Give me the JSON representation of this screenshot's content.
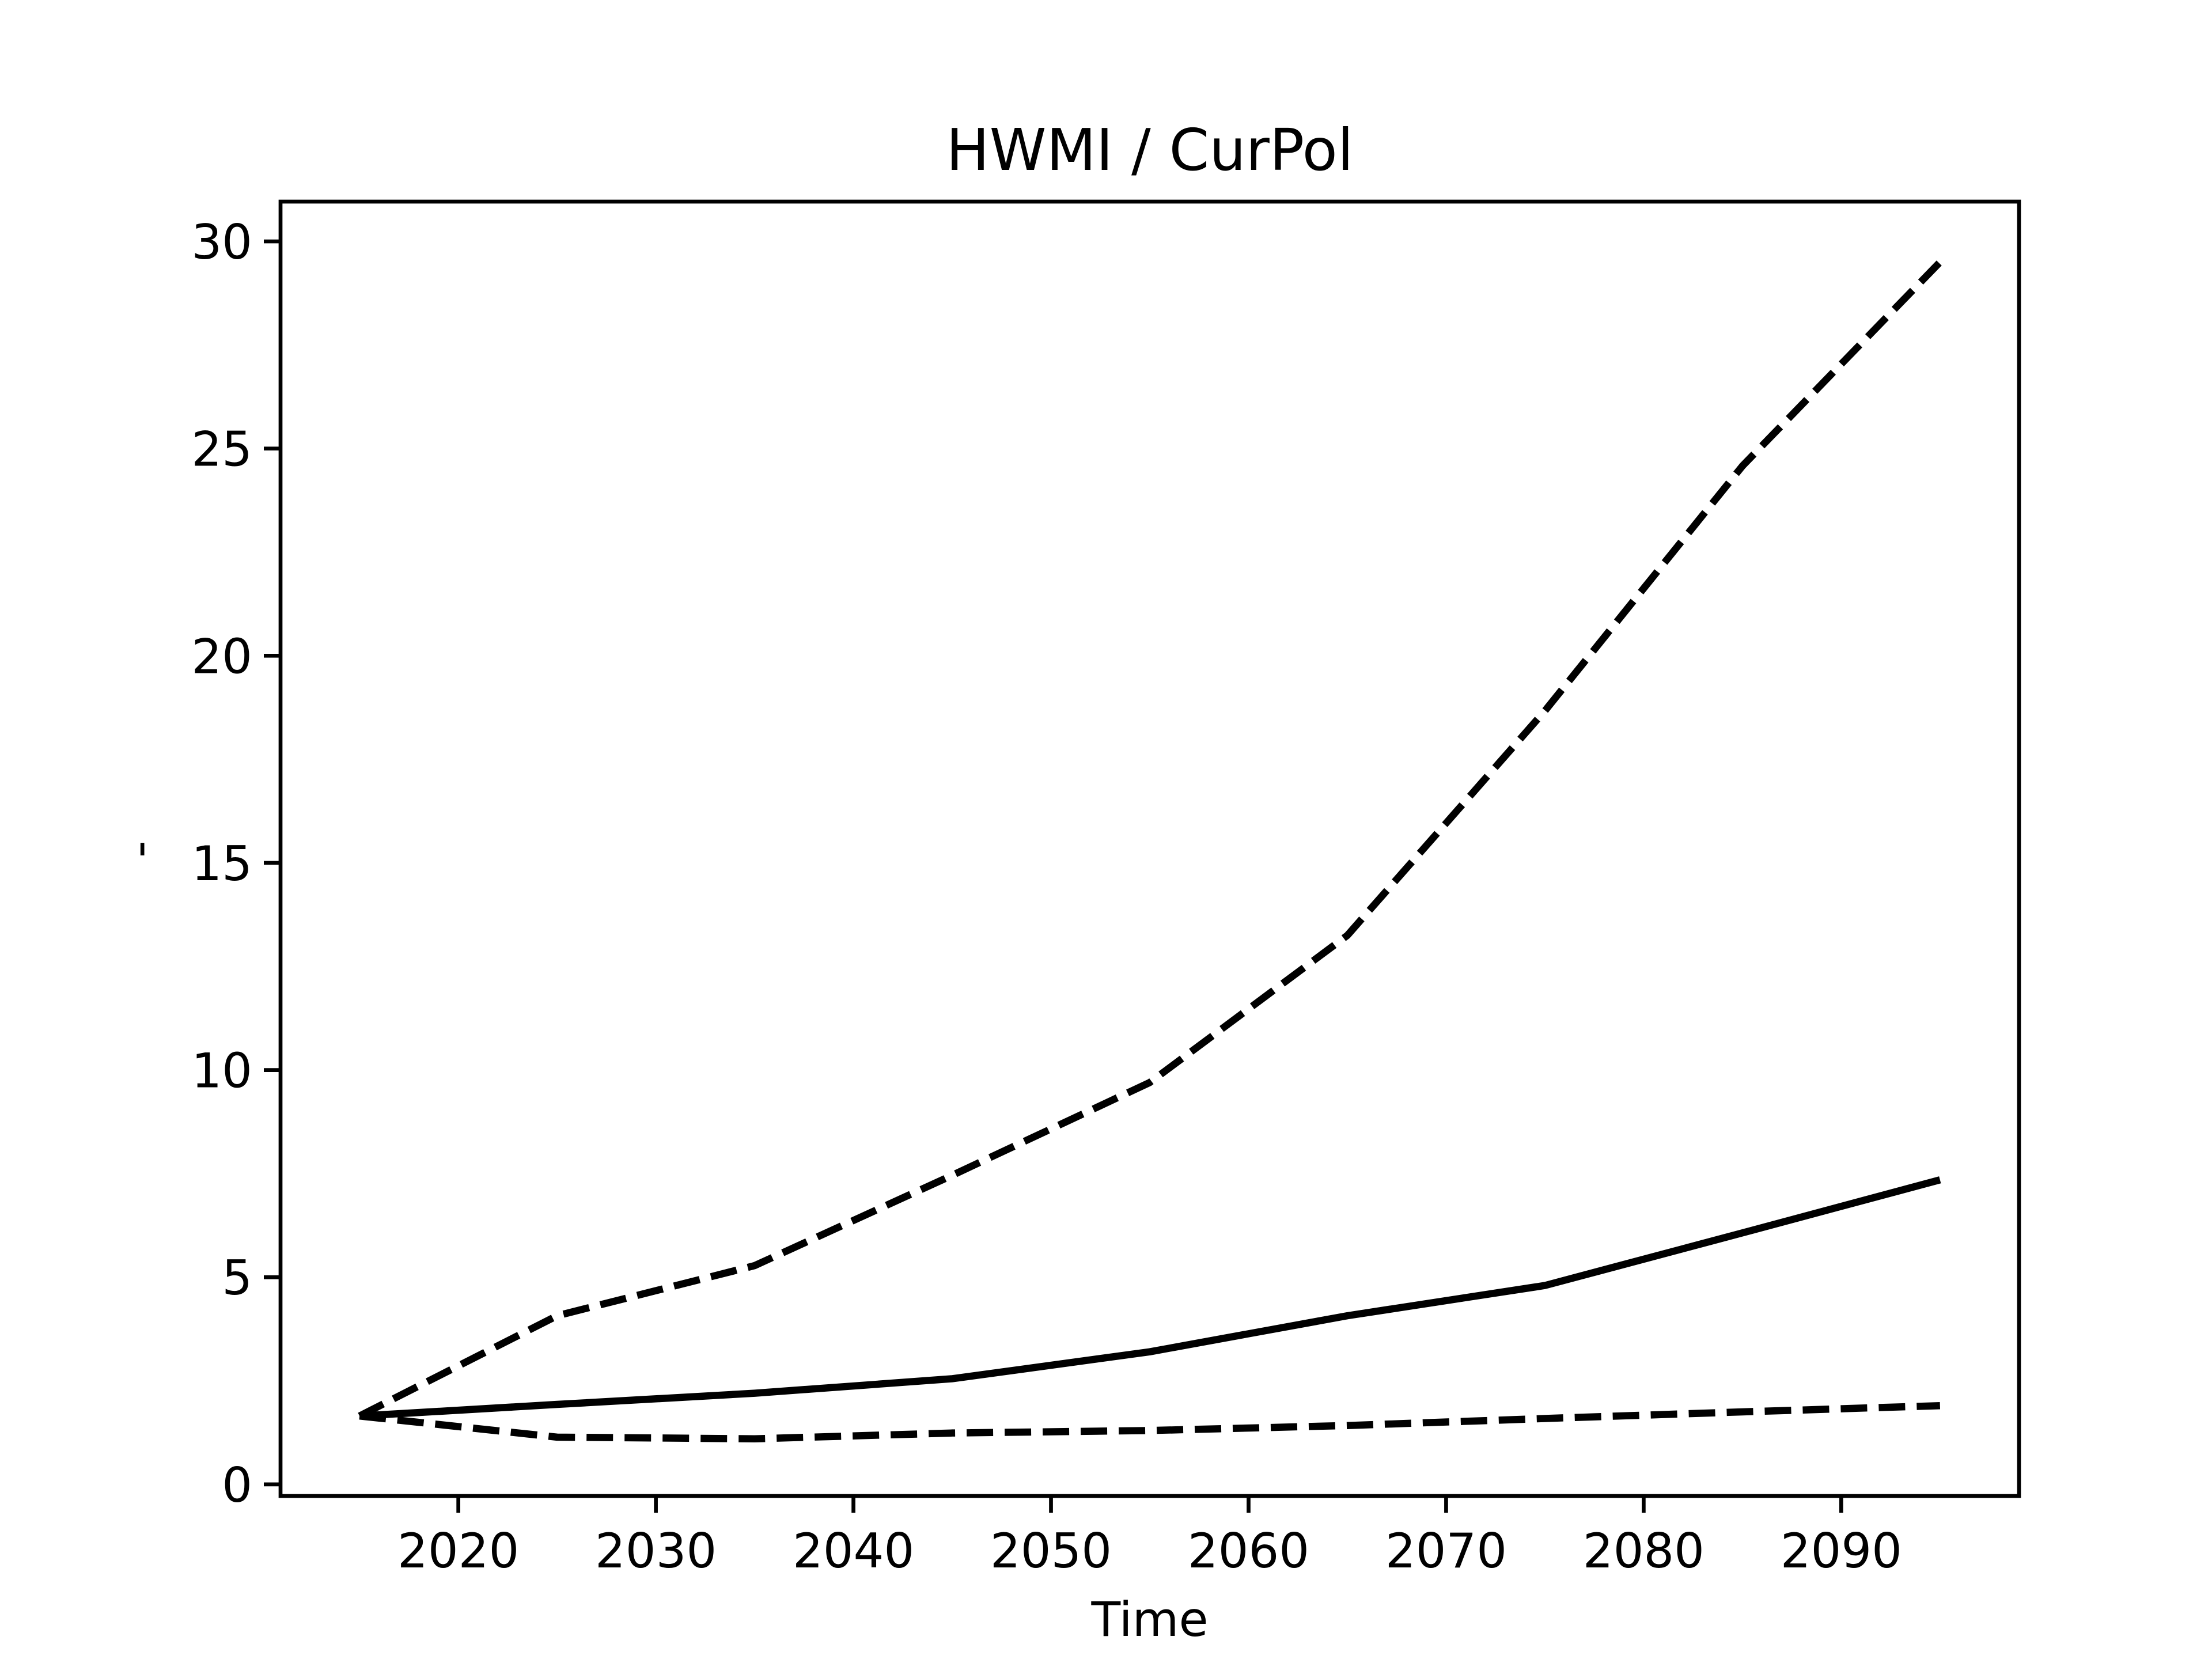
{
  "chart_data": {
    "type": "line",
    "title": "HWMI / CurPol",
    "xlabel": "Time",
    "ylabel": "-",
    "x": [
      2015,
      2025,
      2035,
      2045,
      2055,
      2065,
      2075,
      2085,
      2095
    ],
    "series": [
      {
        "color": "#000000",
        "linestyle": "solid",
        "values": [
          1.65,
          1.93,
          2.2,
          2.55,
          3.2,
          4.07,
          4.8,
          6.07,
          7.35
        ]
      },
      {
        "color": "#000000",
        "linestyle": "dashed",
        "values": [
          1.65,
          4.07,
          5.28,
          7.46,
          9.7,
          13.25,
          18.67,
          24.58,
          29.5
        ]
      },
      {
        "color": "#000000",
        "linestyle": "dashed",
        "values": [
          1.65,
          1.14,
          1.1,
          1.24,
          1.3,
          1.42,
          1.59,
          1.75,
          1.9
        ]
      }
    ],
    "xlim": [
      2011,
      2099
    ],
    "xticks": [
      2020,
      2030,
      2040,
      2050,
      2060,
      2070,
      2080,
      2090
    ],
    "ylim": [
      -0.28,
      30.96
    ],
    "yticks": [
      0,
      5,
      10,
      15,
      20,
      25,
      30
    ],
    "grid": false
  }
}
